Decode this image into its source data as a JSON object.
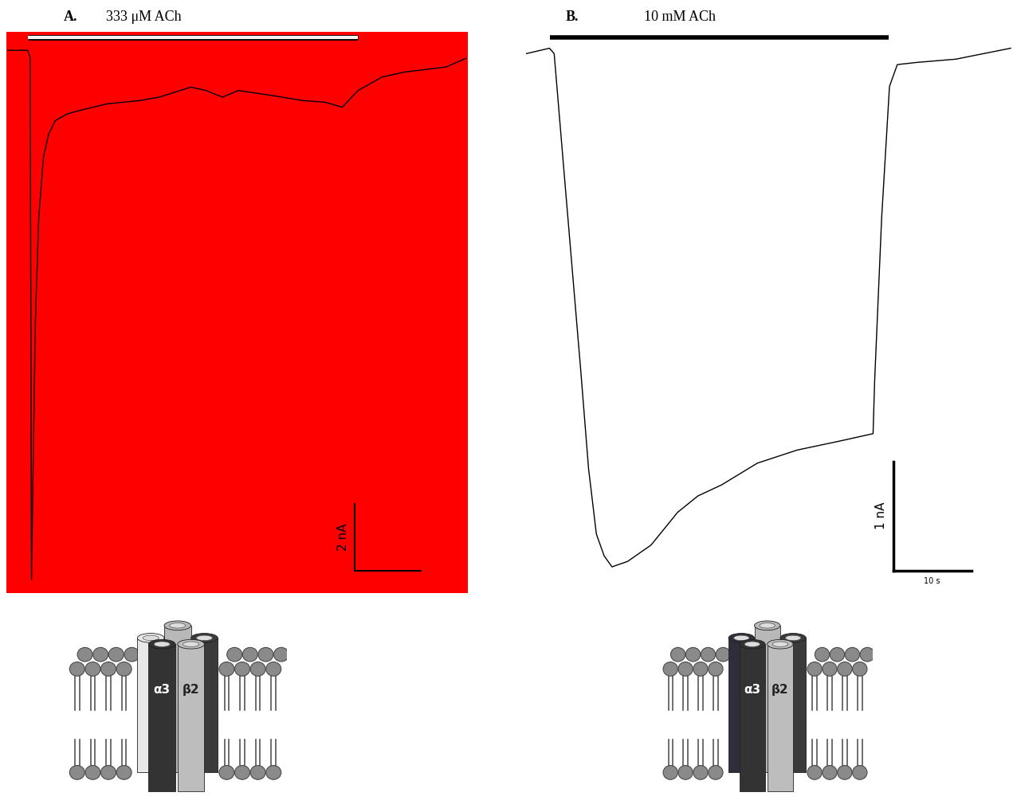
{
  "chart_data": [
    {
      "type": "line",
      "label": "A.",
      "title": "333 μM ACh",
      "color": "#000000",
      "tick_labels": false,
      "x": [
        0,
        3.0,
        3.4,
        3.6,
        3.8,
        4.2,
        4.7,
        5.4,
        6.2,
        7.2,
        9.0,
        10.8,
        15,
        20,
        22.9,
        27.7,
        30,
        32.5,
        34.9,
        40,
        44.6,
        48,
        50.6,
        53,
        56.6,
        60,
        66.3,
        69.3
      ],
      "values": [
        0,
        0,
        -0.2,
        -15.8,
        -13,
        -8.0,
        -5,
        -3.2,
        -2.5,
        -2.1,
        -1.9,
        -1.8,
        -1.6,
        -1.5,
        -1.4,
        -1.1,
        -1.2,
        -1.4,
        -1.2,
        -1.35,
        -1.5,
        -1.55,
        -1.7,
        -1.2,
        -0.8,
        -0.65,
        -0.5,
        -0.24
      ],
      "xlim": [
        -0.2,
        69.6
      ],
      "ylim": [
        -16.2,
        0.55
      ],
      "application": [
        3.0,
        53.0
      ],
      "scale_bars": {
        "y": {
          "value": 2,
          "label": "2 nA"
        },
        "x": {
          "value": 10
        }
      },
      "diagram": {
        "subunits": [
          "α3",
          "β2"
        ]
      }
    },
    {
      "type": "line",
      "label": "B.",
      "title": "10 mM ACh",
      "color": "#000000",
      "tick_labels": false,
      "x": [
        0,
        3.0,
        3.6,
        5,
        7,
        8,
        9,
        10,
        11,
        13,
        16,
        19.4,
        22,
        25,
        29.6,
        34.7,
        40,
        44.4,
        44.6,
        45.5,
        46.5,
        47.5,
        50,
        55,
        62
      ],
      "values": [
        0,
        0.05,
        0,
        -1.2,
        -2.9,
        -3.8,
        -4.4,
        -4.6,
        -4.7,
        -4.65,
        -4.5,
        -4.2,
        -4.05,
        -3.95,
        -3.75,
        -3.63,
        -3.55,
        -3.48,
        -3.0,
        -1.5,
        -0.3,
        -0.1,
        -0.08,
        -0.05,
        0.05
      ],
      "xlim": [
        0,
        62.2
      ],
      "ylim": [
        -4.94,
        0.2
      ],
      "application": [
        3.1,
        46.4
      ],
      "scale_bars": {
        "y": {
          "value": 1,
          "label": "1 nA"
        },
        "x": {
          "value": 10,
          "label": "10 s"
        }
      },
      "diagram": {
        "subunits": [
          "α3",
          "β2"
        ]
      }
    }
  ]
}
